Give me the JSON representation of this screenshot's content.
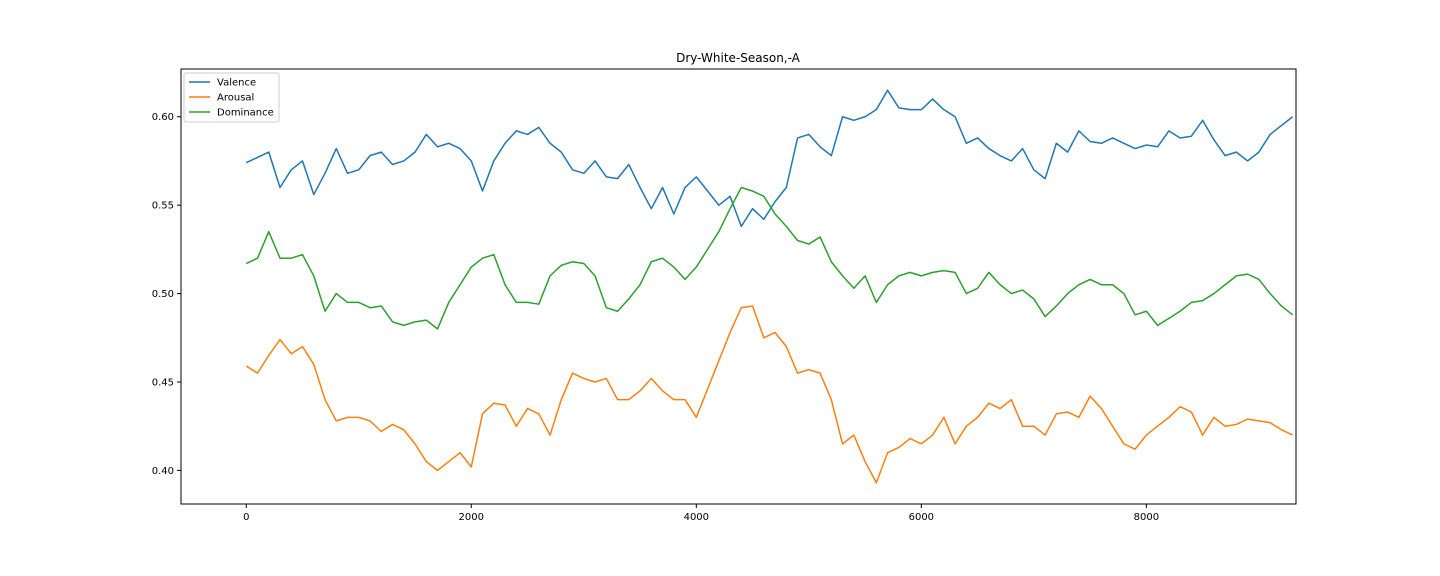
{
  "chart_data": {
    "type": "line",
    "title": "Dry-White-Season,-A",
    "xlabel": "",
    "ylabel": "",
    "xlim": [
      -580,
      9330
    ],
    "ylim": [
      0.381,
      0.627
    ],
    "xticks": [
      0,
      2000,
      4000,
      6000,
      8000
    ],
    "xtick_labels": [
      "0",
      "2000",
      "4000",
      "6000",
      "8000"
    ],
    "yticks": [
      0.4,
      0.45,
      0.5,
      0.55,
      0.6
    ],
    "ytick_labels": [
      "0.40",
      "0.45",
      "0.50",
      "0.55",
      "0.60"
    ],
    "grid": false,
    "legend_position": "upper-left",
    "x": [
      0,
      100,
      200,
      300,
      400,
      500,
      600,
      700,
      800,
      900,
      1000,
      1100,
      1200,
      1300,
      1400,
      1500,
      1600,
      1700,
      1800,
      1900,
      2000,
      2100,
      2200,
      2300,
      2400,
      2500,
      2600,
      2700,
      2800,
      2900,
      3000,
      3100,
      3200,
      3300,
      3400,
      3500,
      3600,
      3700,
      3800,
      3900,
      4000,
      4100,
      4200,
      4300,
      4400,
      4500,
      4600,
      4700,
      4800,
      4900,
      5000,
      5100,
      5200,
      5300,
      5400,
      5500,
      5600,
      5700,
      5800,
      5900,
      6000,
      6100,
      6200,
      6300,
      6400,
      6500,
      6600,
      6700,
      6800,
      6900,
      7000,
      7100,
      7200,
      7300,
      7400,
      7500,
      7600,
      7700,
      7800,
      7900,
      8000,
      8100,
      8200,
      8300,
      8400,
      8500,
      8600,
      8700,
      8800,
      8900,
      9000,
      9100,
      9200,
      9300
    ],
    "series": [
      {
        "name": "Valence",
        "color": "#1f77b4",
        "values": [
          0.574,
          0.577,
          0.58,
          0.56,
          0.57,
          0.575,
          0.556,
          0.568,
          0.582,
          0.568,
          0.57,
          0.578,
          0.58,
          0.573,
          0.575,
          0.58,
          0.59,
          0.583,
          0.585,
          0.582,
          0.575,
          0.558,
          0.575,
          0.585,
          0.592,
          0.59,
          0.594,
          0.585,
          0.58,
          0.57,
          0.568,
          0.575,
          0.566,
          0.565,
          0.573,
          0.56,
          0.548,
          0.56,
          0.545,
          0.56,
          0.566,
          0.558,
          0.55,
          0.555,
          0.538,
          0.548,
          0.542,
          0.552,
          0.56,
          0.588,
          0.59,
          0.583,
          0.578,
          0.6,
          0.598,
          0.6,
          0.604,
          0.615,
          0.605,
          0.604,
          0.604,
          0.61,
          0.604,
          0.6,
          0.585,
          0.588,
          0.582,
          0.578,
          0.575,
          0.582,
          0.57,
          0.565,
          0.585,
          0.58,
          0.592,
          0.586,
          0.585,
          0.588,
          0.585,
          0.582,
          0.584,
          0.583,
          0.592,
          0.588,
          0.589,
          0.598,
          0.587,
          0.578,
          0.58,
          0.575,
          0.58,
          0.59,
          0.595,
          0.6
        ]
      },
      {
        "name": "Arousal",
        "color": "#ff7f0e",
        "values": [
          0.459,
          0.455,
          0.465,
          0.474,
          0.466,
          0.47,
          0.46,
          0.44,
          0.428,
          0.43,
          0.43,
          0.428,
          0.422,
          0.426,
          0.423,
          0.415,
          0.405,
          0.4,
          0.405,
          0.41,
          0.402,
          0.432,
          0.438,
          0.437,
          0.425,
          0.435,
          0.432,
          0.42,
          0.44,
          0.455,
          0.452,
          0.45,
          0.452,
          0.44,
          0.44,
          0.445,
          0.452,
          0.445,
          0.44,
          0.44,
          0.43,
          0.446,
          0.462,
          0.478,
          0.492,
          0.493,
          0.475,
          0.478,
          0.47,
          0.455,
          0.457,
          0.455,
          0.44,
          0.415,
          0.42,
          0.405,
          0.393,
          0.41,
          0.413,
          0.418,
          0.415,
          0.42,
          0.43,
          0.415,
          0.425,
          0.43,
          0.438,
          0.435,
          0.44,
          0.425,
          0.425,
          0.42,
          0.432,
          0.433,
          0.43,
          0.442,
          0.435,
          0.425,
          0.415,
          0.412,
          0.42,
          0.425,
          0.43,
          0.436,
          0.433,
          0.42,
          0.43,
          0.425,
          0.426,
          0.429,
          0.428,
          0.427,
          0.423,
          0.42
        ]
      },
      {
        "name": "Dominance",
        "color": "#2ca02c",
        "values": [
          0.517,
          0.52,
          0.535,
          0.52,
          0.52,
          0.522,
          0.51,
          0.49,
          0.5,
          0.495,
          0.495,
          0.492,
          0.493,
          0.484,
          0.482,
          0.484,
          0.485,
          0.48,
          0.495,
          0.505,
          0.515,
          0.52,
          0.522,
          0.505,
          0.495,
          0.495,
          0.494,
          0.51,
          0.516,
          0.518,
          0.517,
          0.51,
          0.492,
          0.49,
          0.497,
          0.505,
          0.518,
          0.52,
          0.515,
          0.508,
          0.515,
          0.525,
          0.535,
          0.548,
          0.56,
          0.558,
          0.555,
          0.545,
          0.538,
          0.53,
          0.528,
          0.532,
          0.518,
          0.51,
          0.503,
          0.51,
          0.495,
          0.505,
          0.51,
          0.512,
          0.51,
          0.512,
          0.513,
          0.512,
          0.5,
          0.503,
          0.512,
          0.505,
          0.5,
          0.502,
          0.497,
          0.487,
          0.493,
          0.5,
          0.505,
          0.508,
          0.505,
          0.505,
          0.5,
          0.488,
          0.49,
          0.482,
          0.486,
          0.49,
          0.495,
          0.496,
          0.5,
          0.505,
          0.51,
          0.511,
          0.508,
          0.5,
          0.493,
          0.488
        ]
      }
    ]
  }
}
